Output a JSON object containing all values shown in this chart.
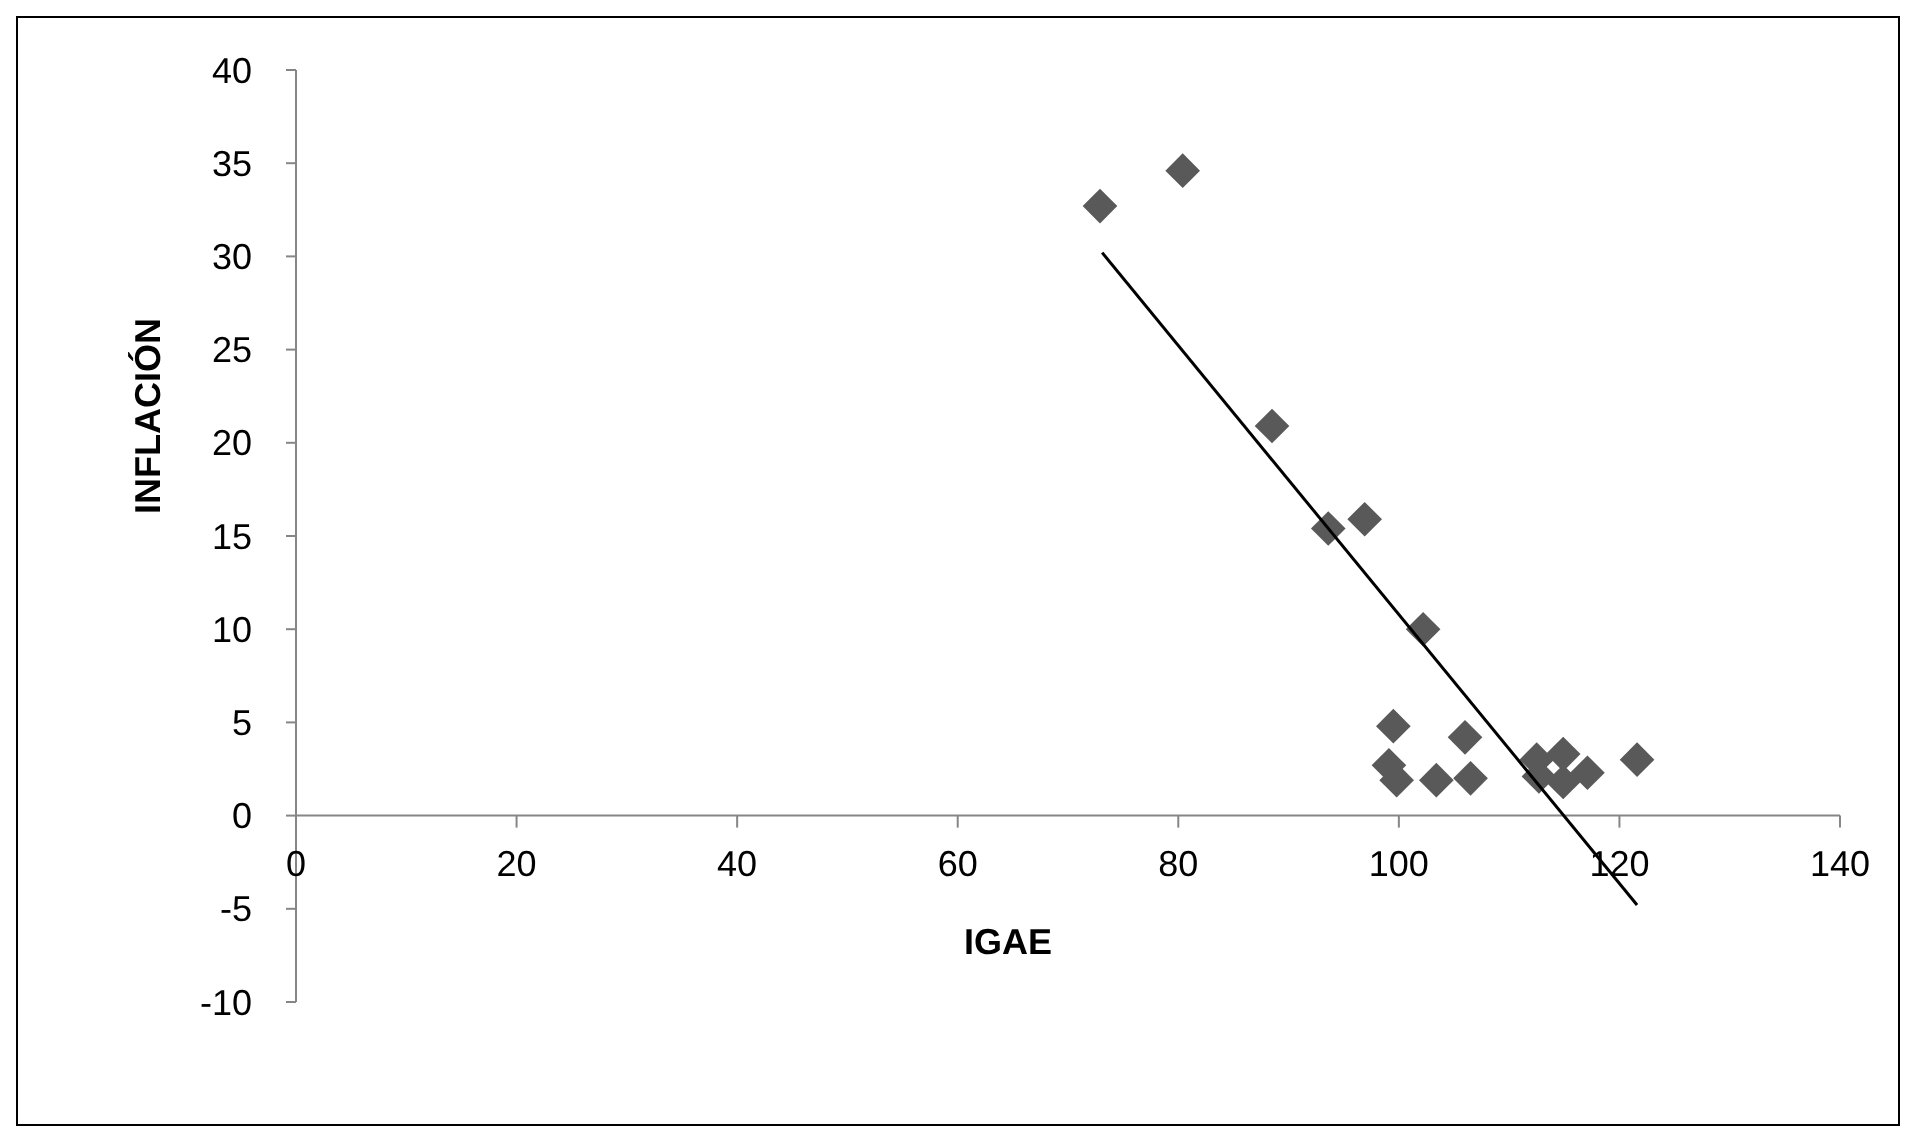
{
  "chart_data": {
    "type": "scatter",
    "xlabel": "IGAE",
    "ylabel": "INFLACIÓN",
    "xlim": [
      0,
      140
    ],
    "ylim": [
      -10,
      40
    ],
    "xticks": [
      0,
      20,
      40,
      60,
      80,
      100,
      120,
      140
    ],
    "yticks": [
      -10,
      -5,
      0,
      5,
      10,
      15,
      20,
      25,
      30,
      35,
      40
    ],
    "grid": false,
    "marker": "diamond",
    "series": [
      {
        "color": "#595959",
        "x": [
          72.9,
          80.4,
          88.5,
          93.6,
          96.9,
          102.2,
          99.5,
          99.1,
          99.8,
          103.4,
          106,
          106.5,
          112.5,
          112.7,
          114.9,
          114.9,
          117.1,
          121.6
        ],
        "values": [
          32.7,
          34.6,
          20.9,
          15.4,
          15.9,
          10,
          4.8,
          2.7,
          1.9,
          1.9,
          4.2,
          2,
          3,
          2.1,
          3.3,
          1.8,
          2.3,
          3
        ]
      },
      {
        "type": "line",
        "color": "#000000",
        "marker": "none",
        "x": [
          73.1,
          121.6
        ],
        "values": [
          30.2,
          -4.8
        ]
      }
    ]
  }
}
